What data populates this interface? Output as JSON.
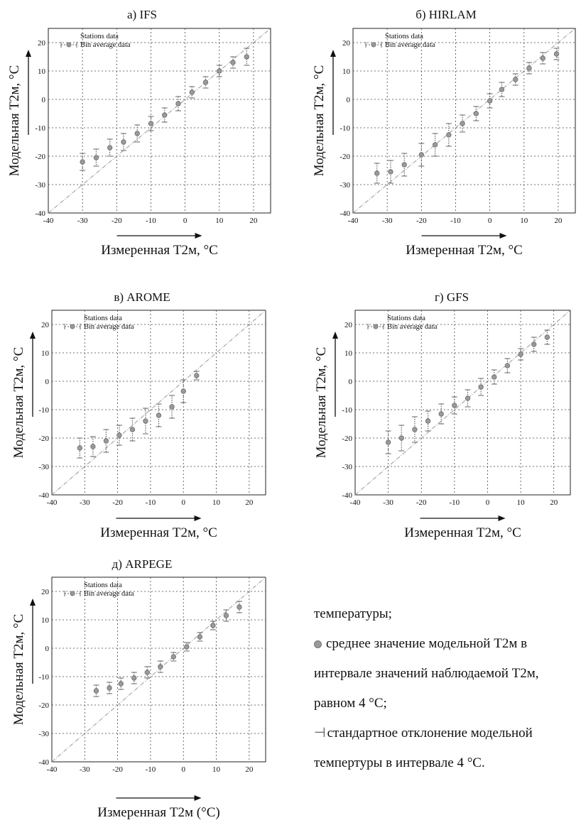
{
  "chart_data": [
    {
      "type": "scatter",
      "title": "а) IFS",
      "xlabel": "Измеренная Т2м, °С",
      "ylabel": "Модельная Т2м, °С",
      "xlim": [
        -40,
        25
      ],
      "ylim": [
        -40,
        25
      ],
      "xticks": [
        "-40",
        "-30",
        "-20",
        "-10",
        "0",
        "10",
        "20"
      ],
      "yticks": [
        "-40",
        "-30",
        "-20",
        "-10",
        "0",
        "10",
        "20"
      ],
      "grid": true,
      "legend_position": "top-left",
      "legend": [
        "Stations data",
        "Bin average data"
      ],
      "series": [
        {
          "name": "Bin average data",
          "x": [
            -30,
            -26,
            -22,
            -18,
            -14,
            -10,
            -6,
            -2,
            2,
            6,
            10,
            14,
            18
          ],
          "y": [
            -22,
            -20.5,
            -17,
            -15,
            -12,
            -8.5,
            -5.5,
            -1.5,
            2.5,
            6,
            10,
            13,
            15
          ],
          "err": [
            3,
            3,
            3,
            3,
            3,
            2.5,
            2.5,
            2.5,
            2,
            2,
            2,
            2,
            3
          ]
        }
      ]
    },
    {
      "type": "scatter",
      "title": "б) HIRLAM",
      "xlabel": "Измеренная Т2м, °С",
      "ylabel": "Модельная Т2м, °С",
      "xlim": [
        -40,
        25
      ],
      "ylim": [
        -40,
        25
      ],
      "xticks": [
        "-40",
        "-30",
        "-20",
        "-10",
        "0",
        "10",
        "20"
      ],
      "yticks": [
        "-40",
        "-30",
        "-20",
        "-10",
        "0",
        "10",
        "20"
      ],
      "grid": true,
      "legend_position": "top-left",
      "legend": [
        "Stations data",
        "Bin average data"
      ],
      "series": [
        {
          "name": "Bin average data",
          "x": [
            -33,
            -29,
            -25,
            -20,
            -16,
            -12,
            -8,
            -4,
            0,
            3.5,
            7.5,
            11.5,
            15.5,
            19.5
          ],
          "y": [
            -26,
            -25.5,
            -23,
            -19.5,
            -16,
            -12.5,
            -8.5,
            -5,
            -0.5,
            3.5,
            7,
            11,
            14.5,
            16
          ],
          "err": [
            3.5,
            4,
            4,
            4,
            4,
            4,
            3,
            2.5,
            2.5,
            2.5,
            2,
            2,
            2,
            2
          ]
        }
      ]
    },
    {
      "type": "scatter",
      "title": "в) AROME",
      "xlabel": "Измеренная Т2м, °С",
      "ylabel": "Модельная Т2м, °С",
      "xlim": [
        -40,
        25
      ],
      "ylim": [
        -40,
        25
      ],
      "xticks": [
        "-40",
        "-30",
        "-20",
        "-10",
        "0",
        "10",
        "20"
      ],
      "yticks": [
        "-40",
        "-30",
        "-20",
        "-10",
        "0",
        "10",
        "20"
      ],
      "grid": true,
      "legend_position": "top-left",
      "legend": [
        "Stations data",
        "Bin average data"
      ],
      "series": [
        {
          "name": "Bin average data",
          "x": [
            -31.5,
            -27.5,
            -23.5,
            -19.5,
            -15.5,
            -11.5,
            -7.5,
            -3.5,
            0,
            4
          ],
          "y": [
            -23.5,
            -23,
            -21,
            -19,
            -17,
            -14,
            -12,
            -9,
            -3.5,
            2
          ],
          "err": [
            3.5,
            3.5,
            4,
            3.5,
            4,
            4.5,
            4,
            4,
            4,
            1.5
          ]
        }
      ]
    },
    {
      "type": "scatter",
      "title": "г) GFS",
      "xlabel": "Измеренная Т2м, °С",
      "ylabel": "Модельная Т2м, °С",
      "xlim": [
        -40,
        25
      ],
      "ylim": [
        -40,
        25
      ],
      "xticks": [
        "-40",
        "-30",
        "-20",
        "-10",
        "0",
        "10",
        "20"
      ],
      "yticks": [
        "-40",
        "-30",
        "-20",
        "-10",
        "0",
        "10",
        "20"
      ],
      "grid": true,
      "legend_position": "top-left",
      "legend": [
        "Stations data",
        "Bin average data"
      ],
      "series": [
        {
          "name": "Bin average data",
          "x": [
            -30,
            -26,
            -22,
            -18,
            -14,
            -10,
            -6,
            -2,
            2,
            6,
            10,
            14,
            18
          ],
          "y": [
            -21.5,
            -20,
            -17,
            -14,
            -11.5,
            -8.5,
            -6,
            -2,
            1.5,
            5.5,
            9.5,
            13,
            15.5
          ],
          "err": [
            4,
            4.5,
            4.5,
            3.5,
            3.5,
            3,
            3,
            3,
            2.5,
            2.5,
            2,
            2.5,
            2.5
          ]
        }
      ]
    },
    {
      "type": "scatter",
      "title": "д) ARPEGE",
      "xlabel": "Измеренная Т2м (°С)",
      "ylabel": "Модельная Т2м, °С",
      "xlim": [
        -40,
        25
      ],
      "ylim": [
        -40,
        25
      ],
      "xticks": [
        "-40",
        "-30",
        "-20",
        "-10",
        "0",
        "10",
        "20"
      ],
      "yticks": [
        "-40",
        "-30",
        "-20",
        "-10",
        "0",
        "10",
        "20"
      ],
      "grid": true,
      "legend_position": "top-left",
      "legend": [
        "Stations data",
        "Bin average data"
      ],
      "series": [
        {
          "name": "Bin average data",
          "x": [
            -26.5,
            -22.5,
            -19,
            -15,
            -11,
            -7,
            -3,
            1,
            5,
            9,
            13,
            17
          ],
          "y": [
            -15,
            -14,
            -12.5,
            -10.5,
            -8.5,
            -6.5,
            -3,
            0.5,
            4,
            8,
            11.5,
            14.5
          ],
          "err": [
            2,
            2,
            2,
            2,
            2,
            2,
            1.5,
            1.5,
            1.5,
            1.5,
            2,
            2
          ]
        }
      ]
    }
  ],
  "note": {
    "line1": "температуры;",
    "line2": "среднее значение модельной Т2м в",
    "line3": "интервале значений наблюдаемой Т2м,",
    "line4": "равном 4 °С;",
    "line5": "стандартное отклонение модельной",
    "line6": "темпертуры в интервале 4 °С."
  }
}
